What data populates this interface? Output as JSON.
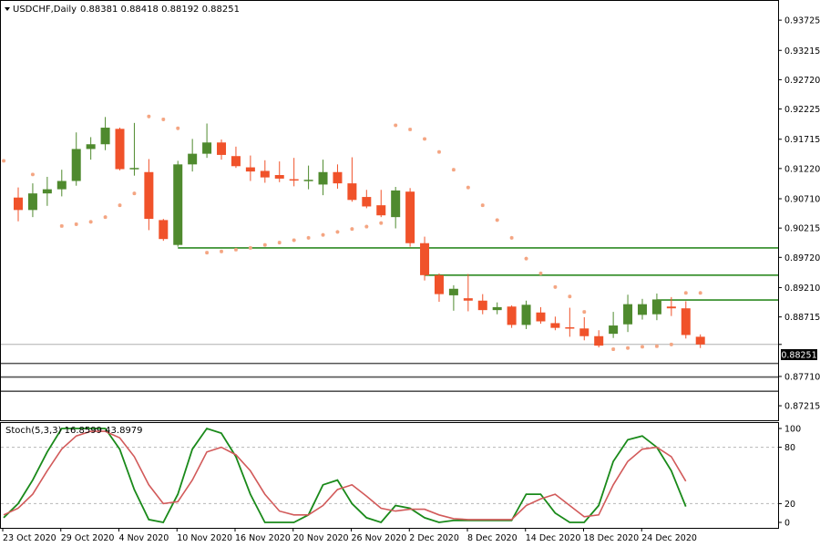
{
  "header": {
    "symbol": "USDCHF,Daily",
    "ohlc": "0.88381 0.88418 0.88192 0.88251",
    "collapse_icon": "triangle-down-icon"
  },
  "stoch": {
    "label": "Stoch(5,3,3) 16.8599 43.8979"
  },
  "colors": {
    "bull": "#4f8a2e",
    "bear": "#f0522a",
    "sar": "#f4a582",
    "level_line": "#2d8a22",
    "stoch_main": "#1a8a1a",
    "stoch_signal": "#d25a5a",
    "price_line": "#b0b0b0"
  },
  "chart_data": [
    {
      "type": "candlestick",
      "title": "USDCHF,Daily",
      "ylim": [
        0.8697,
        0.9405
      ],
      "y_ticks": [
        "0.93725",
        "0.93215",
        "0.92720",
        "0.92225",
        "0.91715",
        "0.91220",
        "0.90710",
        "0.90215",
        "0.89720",
        "0.89210",
        "0.88715",
        "0.88251",
        "0.87710",
        "0.87215"
      ],
      "x_labels": [
        "23 Oct 2020",
        "29 Oct 2020",
        "4 Nov 2020",
        "10 Nov 2020",
        "16 Nov 2020",
        "20 Nov 2020",
        "26 Nov 2020",
        "2 Dec 2020",
        "8 Dec 2020",
        "14 Dec 2020",
        "18 Dec 2020",
        "24 Dec 2020"
      ],
      "current_price": "0.88251",
      "candles": [
        {
          "o": 0.9073,
          "h": 0.909,
          "l": 0.9033,
          "c": 0.9052
        },
        {
          "o": 0.9052,
          "h": 0.9097,
          "l": 0.904,
          "c": 0.908
        },
        {
          "o": 0.908,
          "h": 0.9108,
          "l": 0.9059,
          "c": 0.9087
        },
        {
          "o": 0.9087,
          "h": 0.912,
          "l": 0.9075,
          "c": 0.9101
        },
        {
          "o": 0.9101,
          "h": 0.9183,
          "l": 0.9093,
          "c": 0.9155
        },
        {
          "o": 0.9155,
          "h": 0.9175,
          "l": 0.9137,
          "c": 0.9163
        },
        {
          "o": 0.9163,
          "h": 0.9209,
          "l": 0.9153,
          "c": 0.9191
        },
        {
          "o": 0.9189,
          "h": 0.9191,
          "l": 0.9119,
          "c": 0.9121
        },
        {
          "o": 0.9121,
          "h": 0.9199,
          "l": 0.911,
          "c": 0.9123
        },
        {
          "o": 0.9116,
          "h": 0.9138,
          "l": 0.9018,
          "c": 0.9037
        },
        {
          "o": 0.9035,
          "h": 0.9037,
          "l": 0.9,
          "c": 0.9003
        },
        {
          "o": 0.8993,
          "h": 0.9135,
          "l": 0.899,
          "c": 0.9129
        },
        {
          "o": 0.9129,
          "h": 0.9172,
          "l": 0.9117,
          "c": 0.9147
        },
        {
          "o": 0.9147,
          "h": 0.9198,
          "l": 0.914,
          "c": 0.9166
        },
        {
          "o": 0.9166,
          "h": 0.9171,
          "l": 0.9137,
          "c": 0.9145
        },
        {
          "o": 0.9143,
          "h": 0.9159,
          "l": 0.9123,
          "c": 0.9126
        },
        {
          "o": 0.9124,
          "h": 0.9144,
          "l": 0.9101,
          "c": 0.9117
        },
        {
          "o": 0.9118,
          "h": 0.9136,
          "l": 0.9098,
          "c": 0.9107
        },
        {
          "o": 0.9111,
          "h": 0.9134,
          "l": 0.9099,
          "c": 0.9105
        },
        {
          "o": 0.9104,
          "h": 0.914,
          "l": 0.9092,
          "c": 0.9102
        },
        {
          "o": 0.9102,
          "h": 0.9127,
          "l": 0.9087,
          "c": 0.9103
        },
        {
          "o": 0.9095,
          "h": 0.9137,
          "l": 0.9077,
          "c": 0.9116
        },
        {
          "o": 0.9116,
          "h": 0.9129,
          "l": 0.9088,
          "c": 0.9097
        },
        {
          "o": 0.9097,
          "h": 0.9141,
          "l": 0.9066,
          "c": 0.9069
        },
        {
          "o": 0.9074,
          "h": 0.9086,
          "l": 0.9055,
          "c": 0.9058
        },
        {
          "o": 0.906,
          "h": 0.9086,
          "l": 0.904,
          "c": 0.9043
        },
        {
          "o": 0.904,
          "h": 0.9091,
          "l": 0.9021,
          "c": 0.9085
        },
        {
          "o": 0.9083,
          "h": 0.9089,
          "l": 0.899,
          "c": 0.8996
        },
        {
          "o": 0.8996,
          "h": 0.9007,
          "l": 0.8933,
          "c": 0.8942
        },
        {
          "o": 0.8942,
          "h": 0.8945,
          "l": 0.8897,
          "c": 0.891
        },
        {
          "o": 0.8908,
          "h": 0.8925,
          "l": 0.8882,
          "c": 0.8919
        },
        {
          "o": 0.8903,
          "h": 0.8944,
          "l": 0.8881,
          "c": 0.8899
        },
        {
          "o": 0.8899,
          "h": 0.891,
          "l": 0.8876,
          "c": 0.8883
        },
        {
          "o": 0.8883,
          "h": 0.8896,
          "l": 0.8876,
          "c": 0.8888
        },
        {
          "o": 0.8889,
          "h": 0.8891,
          "l": 0.8853,
          "c": 0.8858
        },
        {
          "o": 0.8858,
          "h": 0.8899,
          "l": 0.8851,
          "c": 0.8892
        },
        {
          "o": 0.8879,
          "h": 0.8888,
          "l": 0.886,
          "c": 0.8864
        },
        {
          "o": 0.8861,
          "h": 0.8872,
          "l": 0.8849,
          "c": 0.8853
        },
        {
          "o": 0.8854,
          "h": 0.8887,
          "l": 0.8838,
          "c": 0.8852
        },
        {
          "o": 0.8852,
          "h": 0.8871,
          "l": 0.8832,
          "c": 0.8839
        },
        {
          "o": 0.8839,
          "h": 0.8849,
          "l": 0.882,
          "c": 0.8823
        },
        {
          "o": 0.8843,
          "h": 0.888,
          "l": 0.8836,
          "c": 0.8857
        },
        {
          "o": 0.8859,
          "h": 0.8909,
          "l": 0.8846,
          "c": 0.8893
        },
        {
          "o": 0.8875,
          "h": 0.8902,
          "l": 0.8867,
          "c": 0.8893
        },
        {
          "o": 0.8876,
          "h": 0.8911,
          "l": 0.8866,
          "c": 0.8901
        },
        {
          "o": 0.8889,
          "h": 0.8905,
          "l": 0.8873,
          "c": 0.8886
        },
        {
          "o": 0.8886,
          "h": 0.8898,
          "l": 0.8835,
          "c": 0.8841
        },
        {
          "o": 0.8838,
          "h": 0.8842,
          "l": 0.8819,
          "c": 0.8825
        }
      ],
      "sar": [
        {
          "i": -1,
          "v": 0.9135
        },
        {
          "i": 1,
          "v": 0.9112
        },
        {
          "i": 3,
          "v": 0.9025
        },
        {
          "i": 4,
          "v": 0.9028
        },
        {
          "i": 5,
          "v": 0.9032
        },
        {
          "i": 6,
          "v": 0.904
        },
        {
          "i": 7,
          "v": 0.906
        },
        {
          "i": 8,
          "v": 0.908
        },
        {
          "i": 9,
          "v": 0.921
        },
        {
          "i": 10,
          "v": 0.9205
        },
        {
          "i": 11,
          "v": 0.919
        },
        {
          "i": 13,
          "v": 0.898
        },
        {
          "i": 14,
          "v": 0.8982
        },
        {
          "i": 15,
          "v": 0.8985
        },
        {
          "i": 16,
          "v": 0.8988
        },
        {
          "i": 17,
          "v": 0.8993
        },
        {
          "i": 18,
          "v": 0.8997
        },
        {
          "i": 19,
          "v": 0.9001
        },
        {
          "i": 20,
          "v": 0.9005
        },
        {
          "i": 21,
          "v": 0.901
        },
        {
          "i": 22,
          "v": 0.9015
        },
        {
          "i": 23,
          "v": 0.902
        },
        {
          "i": 24,
          "v": 0.9024
        },
        {
          "i": 25,
          "v": 0.903
        },
        {
          "i": 26,
          "v": 0.9195
        },
        {
          "i": 27,
          "v": 0.9188
        },
        {
          "i": 28,
          "v": 0.9172
        },
        {
          "i": 29,
          "v": 0.915
        },
        {
          "i": 30,
          "v": 0.912
        },
        {
          "i": 31,
          "v": 0.909
        },
        {
          "i": 32,
          "v": 0.906
        },
        {
          "i": 33,
          "v": 0.9035
        },
        {
          "i": 34,
          "v": 0.9005
        },
        {
          "i": 35,
          "v": 0.897
        },
        {
          "i": 36,
          "v": 0.8945
        },
        {
          "i": 37,
          "v": 0.8922
        },
        {
          "i": 38,
          "v": 0.8906
        },
        {
          "i": 39,
          "v": 0.888
        },
        {
          "i": 41,
          "v": 0.8817
        },
        {
          "i": 42,
          "v": 0.8819
        },
        {
          "i": 43,
          "v": 0.8821
        },
        {
          "i": 44,
          "v": 0.8822
        },
        {
          "i": 45,
          "v": 0.8825
        },
        {
          "i": 46,
          "v": 0.8912
        },
        {
          "i": 47,
          "v": 0.8912
        }
      ],
      "levels": [
        {
          "start": 11,
          "v": 0.8988
        },
        {
          "start": 28,
          "v": 0.8942
        },
        {
          "start": 44,
          "v": 0.89
        }
      ],
      "lower_lines": [
        0.8793,
        0.877,
        0.8746
      ]
    },
    {
      "type": "line",
      "title": "Stoch(5,3,3) 16.8599 43.8979",
      "ylim": [
        0,
        100
      ],
      "y_ticks": [
        "100",
        "80",
        "20",
        "0"
      ],
      "series": [
        {
          "values": [
            5,
            20,
            45,
            75,
            100,
            100,
            100,
            100,
            78,
            35,
            3,
            0,
            30,
            78,
            100,
            95,
            70,
            30,
            0,
            0,
            0,
            8,
            40,
            45,
            20,
            5,
            0,
            18,
            15,
            5,
            0,
            2,
            2,
            2,
            2,
            2,
            30,
            30,
            10,
            0,
            0,
            18,
            65,
            88,
            92,
            80,
            55,
            16.86
          ]
        },
        {
          "values": [
            8,
            15,
            30,
            55,
            78,
            92,
            97,
            97,
            90,
            70,
            40,
            20,
            22,
            45,
            75,
            80,
            72,
            55,
            30,
            12,
            8,
            8,
            18,
            35,
            40,
            28,
            15,
            12,
            14,
            14,
            8,
            4,
            3,
            3,
            3,
            3,
            18,
            25,
            30,
            18,
            6,
            8,
            40,
            65,
            78,
            80,
            70,
            43.9
          ]
        }
      ]
    }
  ]
}
